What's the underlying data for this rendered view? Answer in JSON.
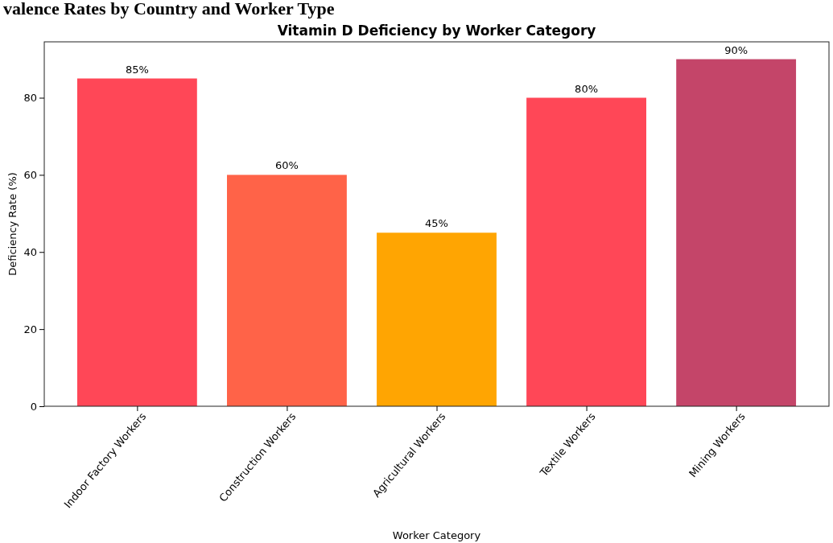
{
  "chart_data": {
    "type": "bar",
    "title": "Vitamin D Deficiency by Worker Category",
    "xlabel": "Worker Category",
    "ylabel": "Deficiency Rate (%)",
    "annotations": [
      "valence Rates by Country and Worker Type"
    ],
    "categories": [
      "Indoor Factory Workers",
      "Construction Workers",
      "Agricultural Workers",
      "Textile Workers",
      "Mining Workers"
    ],
    "values": [
      85,
      60,
      45,
      80,
      90
    ],
    "colors": [
      "#ff4757",
      "#ff6348",
      "#ffa502",
      "#ff4757",
      "#c44569"
    ],
    "value_labels": [
      "85%",
      "60%",
      "45%",
      "80%",
      "90%"
    ],
    "ylim": [
      0,
      94.5
    ],
    "yticks": [
      0,
      20,
      40,
      60,
      80
    ]
  }
}
